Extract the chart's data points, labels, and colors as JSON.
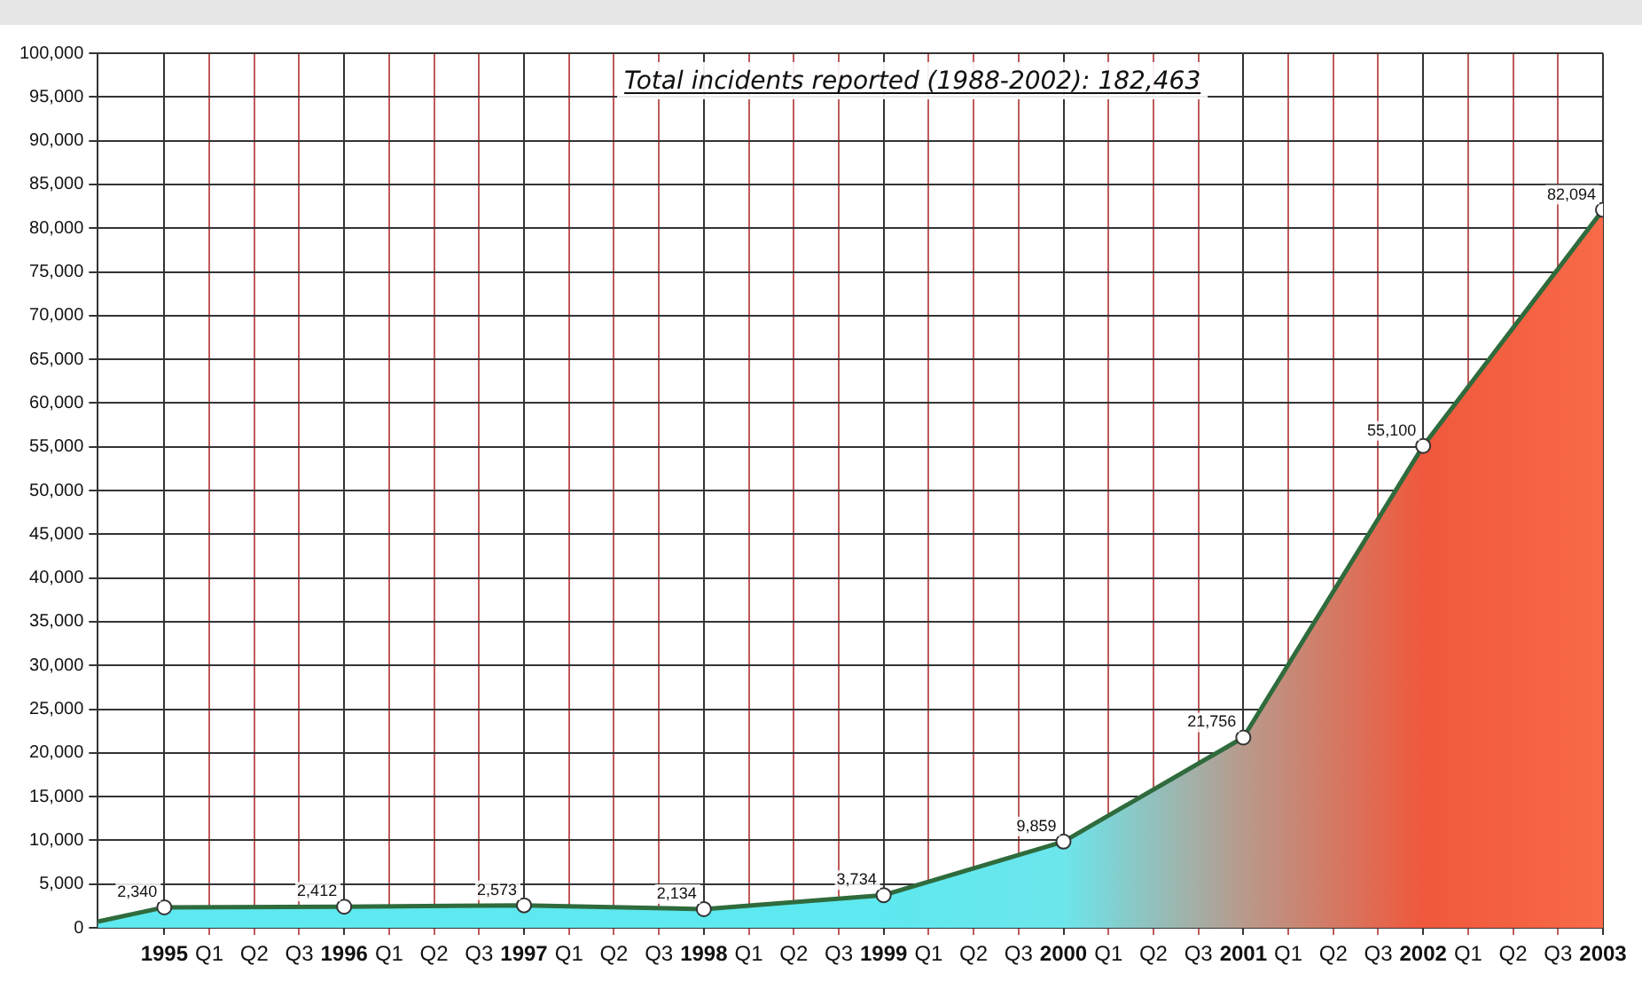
{
  "chart_data": {
    "type": "area",
    "annotations": [
      "Total incidents reported (1988-2002): 182,463"
    ],
    "x": [
      1994.63,
      1995,
      1996,
      1997,
      1998,
      1999,
      2000,
      2001,
      2002,
      2003
    ],
    "series": [
      {
        "color": "#2f6b3c",
        "colors": [
          "#5ee8ef",
          "#5ee8ef",
          "#5ee8ef",
          "#5ee8ef",
          "#5ee8ef",
          "#5ee8ef",
          "#6ce6ec",
          "#b89a8c",
          "#f0583c",
          "#f86a48"
        ],
        "values": [
          700,
          2340,
          2412,
          2573,
          2134,
          3734,
          9859,
          21756,
          55100,
          82094
        ],
        "value_labels": [
          null,
          "2,340",
          "2,412",
          "2,573",
          "2,134",
          "3,734",
          "9,859",
          "21,756",
          "55,100",
          "82,094"
        ]
      }
    ],
    "xlim": [
      1994.63,
      2003
    ],
    "xticks": [
      1995,
      {
        "value": 1995.25,
        "label": "Q1"
      },
      {
        "value": 1995.5,
        "label": "Q2"
      },
      {
        "value": 1995.75,
        "label": "Q3"
      },
      1996,
      {
        "value": 1996.25,
        "label": "Q1"
      },
      {
        "value": 1996.5,
        "label": "Q2"
      },
      {
        "value": 1996.75,
        "label": "Q3"
      },
      1997,
      {
        "value": 1997.25,
        "label": "Q1"
      },
      {
        "value": 1997.5,
        "label": "Q2"
      },
      {
        "value": 1997.75,
        "label": "Q3"
      },
      1998,
      {
        "value": 1998.25,
        "label": "Q1"
      },
      {
        "value": 1998.5,
        "label": "Q2"
      },
      {
        "value": 1998.75,
        "label": "Q3"
      },
      1999,
      {
        "value": 1999.25,
        "label": "Q1"
      },
      {
        "value": 1999.5,
        "label": "Q2"
      },
      {
        "value": 1999.75,
        "label": "Q3"
      },
      2000,
      {
        "value": 2000.25,
        "label": "Q1"
      },
      {
        "value": 2000.5,
        "label": "Q2"
      },
      {
        "value": 2000.75,
        "label": "Q3"
      },
      2001,
      {
        "value": 2001.25,
        "label": "Q1"
      },
      {
        "value": 2001.5,
        "label": "Q2"
      },
      {
        "value": 2001.75,
        "label": "Q3"
      },
      2002,
      {
        "value": 2002.25,
        "label": "Q1"
      },
      {
        "value": 2002.5,
        "label": "Q2"
      },
      {
        "value": 2002.75,
        "label": "Q3"
      },
      2003
    ],
    "ylim": [
      0,
      100000
    ],
    "yticks": [
      {
        "value": 0,
        "label": "0"
      },
      {
        "value": 5000,
        "label": "5,000"
      },
      {
        "value": 10000,
        "label": "10,000"
      },
      {
        "value": 15000,
        "label": "15,000"
      },
      {
        "value": 20000,
        "label": "20,000"
      },
      {
        "value": 25000,
        "label": "25,000"
      },
      {
        "value": 30000,
        "label": "30,000"
      },
      {
        "value": 35000,
        "label": "35,000"
      },
      {
        "value": 40000,
        "label": "40,000"
      },
      {
        "value": 45000,
        "label": "45,000"
      },
      {
        "value": 50000,
        "label": "50,000"
      },
      {
        "value": 55000,
        "label": "55,000"
      },
      {
        "value": 60000,
        "label": "60,000"
      },
      {
        "value": 65000,
        "label": "65,000"
      },
      {
        "value": 70000,
        "label": "70,000"
      },
      {
        "value": 75000,
        "label": "75,000"
      },
      {
        "value": 80000,
        "label": "80,000"
      },
      {
        "value": 85000,
        "label": "85,000"
      },
      {
        "value": 90000,
        "label": "90,000"
      },
      {
        "value": 95000,
        "label": "95,000"
      },
      {
        "value": 100000,
        "label": "100,000"
      }
    ],
    "grid": true,
    "marker": "circle",
    "legend": false
  }
}
